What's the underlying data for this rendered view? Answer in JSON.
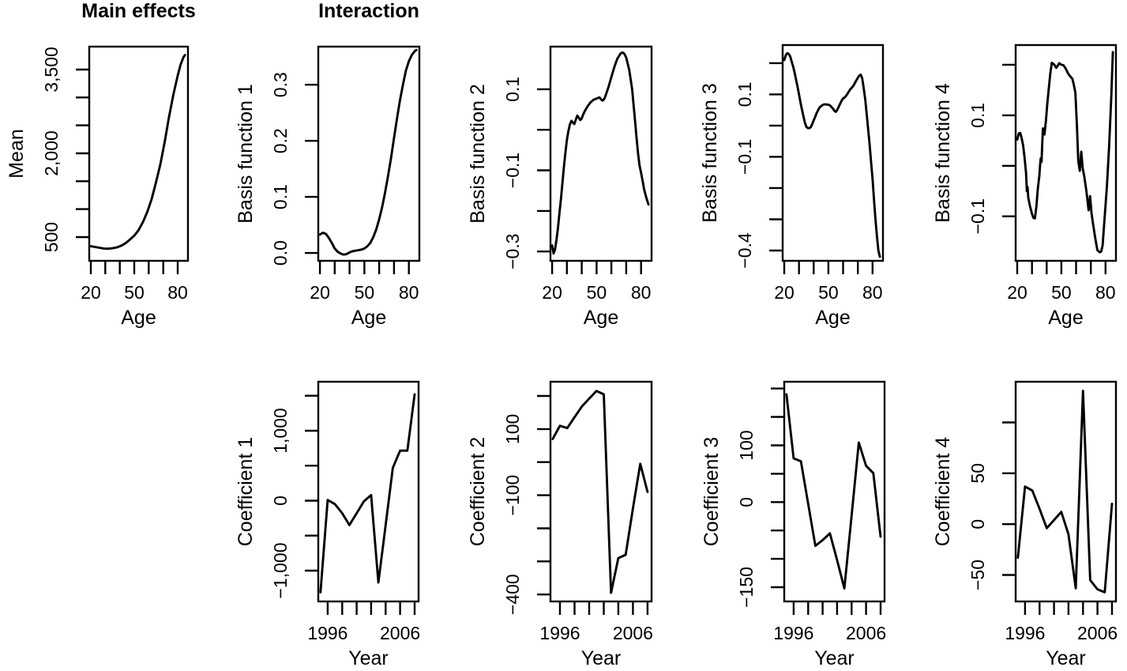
{
  "figure": {
    "background": "#ffffff",
    "line_color": "#000000",
    "header_main": "Main effects",
    "header_interaction": "Interaction"
  },
  "chart_data": [
    {
      "name": "mean",
      "type": "line",
      "title": "Main effects",
      "xlabel": "Age",
      "ylabel": "Mean",
      "xlim": [
        18.9,
        87.1
      ],
      "ylim": [
        75,
        3910
      ],
      "xticks": [
        20,
        30,
        40,
        50,
        60,
        70,
        80
      ],
      "xtick_labels": [
        "20",
        "",
        "",
        "50",
        "",
        "",
        "80"
      ],
      "yticks": [
        500,
        1000,
        1500,
        2000,
        2500,
        3000,
        3500
      ],
      "ytick_labels": [
        "500",
        "",
        "",
        "2,000",
        "",
        "",
        "3,500"
      ],
      "x": [
        20,
        23,
        26,
        29,
        32,
        35,
        38,
        41,
        44,
        47,
        50,
        53,
        56,
        59,
        62,
        65,
        68,
        71,
        74,
        77,
        80,
        82,
        84,
        85
      ],
      "y": [
        335,
        322,
        308,
        296,
        292,
        300,
        316,
        345,
        390,
        455,
        525,
        625,
        770,
        950,
        1180,
        1480,
        1800,
        2200,
        2650,
        3050,
        3390,
        3590,
        3720,
        3760
      ]
    },
    {
      "name": "basis-function-1",
      "type": "line",
      "title": "Interaction",
      "xlabel": "Age",
      "ylabel": "Basis function 1",
      "xlim": [
        18.9,
        87.1
      ],
      "ylim": [
        -0.014,
        0.368
      ],
      "xticks": [
        20,
        30,
        40,
        50,
        60,
        70,
        80
      ],
      "xtick_labels": [
        "20",
        "",
        "",
        "50",
        "",
        "",
        "80"
      ],
      "yticks": [
        0,
        0.1,
        0.2,
        0.3
      ],
      "ytick_labels": [
        "0.0",
        "0.1",
        "0.2",
        "0.3"
      ],
      "x": [
        20,
        22,
        24,
        26,
        28,
        30,
        32,
        34,
        36,
        38,
        40,
        42,
        44,
        46,
        48,
        50,
        52,
        54,
        56,
        58,
        60,
        62,
        64,
        66,
        68,
        70,
        72,
        74,
        76,
        78,
        80,
        82,
        84,
        85
      ],
      "y": [
        0.033,
        0.036,
        0.034,
        0.027,
        0.018,
        0.008,
        0.002,
        -0.001,
        -0.003,
        -0.002,
        0.001,
        0.003,
        0.004,
        0.005,
        0.006,
        0.008,
        0.012,
        0.018,
        0.028,
        0.042,
        0.06,
        0.082,
        0.108,
        0.138,
        0.17,
        0.205,
        0.24,
        0.272,
        0.3,
        0.325,
        0.342,
        0.353,
        0.36,
        0.362
      ]
    },
    {
      "name": "basis-function-2",
      "type": "line",
      "xlabel": "Age",
      "ylabel": "Basis function 2",
      "xlim": [
        18.9,
        87.1
      ],
      "ylim": [
        -0.323,
        0.205
      ],
      "xticks": [
        20,
        30,
        40,
        50,
        60,
        70,
        80
      ],
      "xtick_labels": [
        "20",
        "",
        "",
        "50",
        "",
        "",
        "80"
      ],
      "yticks": [
        -0.3,
        -0.2,
        -0.1,
        0,
        0.1
      ],
      "ytick_labels": [
        "−0.3",
        "",
        "−0.1",
        "",
        "0.1"
      ],
      "x": [
        20,
        21,
        22,
        23,
        24,
        25,
        26,
        27,
        28,
        29,
        30,
        31,
        32,
        33,
        34,
        35,
        36,
        37,
        38,
        39,
        40,
        41,
        42,
        44,
        46,
        48,
        50,
        52,
        53,
        54,
        55,
        56,
        58,
        60,
        62,
        64,
        66,
        67,
        68,
        69,
        70,
        71,
        72,
        73,
        74,
        75,
        76,
        77,
        78,
        79,
        80,
        81,
        82,
        83,
        84,
        85
      ],
      "y": [
        -0.285,
        -0.305,
        -0.295,
        -0.27,
        -0.24,
        -0.205,
        -0.17,
        -0.13,
        -0.09,
        -0.055,
        -0.025,
        -0.003,
        0.013,
        0.022,
        0.018,
        0.014,
        0.025,
        0.035,
        0.03,
        0.024,
        0.028,
        0.038,
        0.046,
        0.058,
        0.068,
        0.074,
        0.077,
        0.08,
        0.075,
        0.072,
        0.075,
        0.083,
        0.105,
        0.13,
        0.155,
        0.175,
        0.187,
        0.19,
        0.19,
        0.186,
        0.178,
        0.163,
        0.148,
        0.125,
        0.1,
        0.06,
        0.02,
        -0.02,
        -0.058,
        -0.088,
        -0.106,
        -0.125,
        -0.145,
        -0.16,
        -0.173,
        -0.184
      ]
    },
    {
      "name": "basis-function-3",
      "type": "line",
      "xlabel": "Age",
      "ylabel": "Basis function 3",
      "xlim": [
        18.9,
        87.1
      ],
      "ylim": [
        -0.433,
        0.258
      ],
      "xticks": [
        20,
        30,
        40,
        50,
        60,
        70,
        80
      ],
      "xtick_labels": [
        "20",
        "",
        "",
        "50",
        "",
        "",
        "80"
      ],
      "yticks": [
        -0.4,
        -0.3,
        -0.2,
        -0.1,
        0,
        0.1,
        0.2
      ],
      "ytick_labels": [
        "−0.4",
        "",
        "",
        "−0.1",
        "",
        "0.1",
        ""
      ],
      "x": [
        20,
        21,
        22,
        23,
        24,
        25,
        26,
        27,
        28,
        29,
        30,
        31,
        32,
        33,
        34,
        35,
        36,
        37,
        38,
        39,
        40,
        41,
        42,
        43,
        44,
        45,
        46,
        47,
        48,
        50,
        51,
        52,
        53,
        54,
        55,
        56,
        57,
        58,
        59,
        60,
        61,
        62,
        63,
        64,
        65,
        66,
        67,
        68,
        69,
        70,
        71,
        72,
        73,
        74,
        75,
        76,
        77,
        78,
        79,
        80,
        81,
        82,
        83,
        84,
        85
      ],
      "y": [
        0.21,
        0.225,
        0.232,
        0.23,
        0.222,
        0.205,
        0.19,
        0.17,
        0.148,
        0.125,
        0.1,
        0.075,
        0.052,
        0.03,
        0.01,
        -0.004,
        -0.008,
        -0.008,
        -0.005,
        0.005,
        0.017,
        0.028,
        0.04,
        0.05,
        0.058,
        0.062,
        0.066,
        0.068,
        0.068,
        0.067,
        0.065,
        0.06,
        0.055,
        0.048,
        0.044,
        0.05,
        0.06,
        0.07,
        0.08,
        0.087,
        0.09,
        0.095,
        0.102,
        0.11,
        0.117,
        0.122,
        0.128,
        0.136,
        0.145,
        0.153,
        0.16,
        0.163,
        0.152,
        0.12,
        0.085,
        0.04,
        -0.01,
        -0.06,
        -0.115,
        -0.17,
        -0.235,
        -0.3,
        -0.355,
        -0.4,
        -0.42
      ]
    },
    {
      "name": "basis-function-4",
      "type": "line",
      "xlabel": "Age",
      "ylabel": "Basis function 4",
      "xlim": [
        18.9,
        87.1
      ],
      "ylim": [
        -0.188,
        0.239
      ],
      "xticks": [
        20,
        30,
        40,
        50,
        60,
        70,
        80
      ],
      "xtick_labels": [
        "20",
        "",
        "",
        "50",
        "",
        "",
        "80"
      ],
      "yticks": [
        -0.1,
        0,
        0.1,
        0.2
      ],
      "ytick_labels": [
        "−0.1",
        "",
        "0.1",
        ""
      ],
      "x": [
        20,
        21,
        22,
        23,
        24,
        25,
        26,
        26.5,
        27,
        27.5,
        28.5,
        30,
        31,
        32,
        33,
        34,
        35,
        35.5,
        36,
        36.5,
        37,
        37.5,
        38,
        38.5,
        39.5,
        40.5,
        41.5,
        42.5,
        43.5,
        44.5,
        45.5,
        46.5,
        47.5,
        48.5,
        50,
        51.5,
        53,
        54.5,
        56,
        57.5,
        58.5,
        59.5,
        60.5,
        61.5,
        62.5,
        63.5,
        64.5,
        65.5,
        67,
        68.5,
        69.5,
        70.5,
        71.5,
        73,
        74.5,
        76,
        77,
        78,
        79.5,
        81,
        82.5,
        84,
        85
      ],
      "y": [
        0.052,
        0.064,
        0.065,
        0.055,
        0.04,
        0.015,
        -0.015,
        -0.05,
        -0.042,
        -0.063,
        -0.078,
        -0.095,
        -0.103,
        -0.104,
        -0.08,
        -0.045,
        -0.02,
        0,
        0.015,
        0.008,
        0.045,
        0.074,
        0.068,
        0.062,
        0.09,
        0.125,
        0.155,
        0.183,
        0.204,
        0.202,
        0.199,
        0.194,
        0.198,
        0.203,
        0.2,
        0.199,
        0.192,
        0.183,
        0.177,
        0.172,
        0.16,
        0.145,
        0.083,
        0.01,
        -0.01,
        0.028,
        -0.005,
        -0.02,
        -0.05,
        -0.088,
        -0.06,
        -0.094,
        -0.115,
        -0.142,
        -0.167,
        -0.171,
        -0.17,
        -0.158,
        -0.1,
        -0.04,
        0.04,
        0.14,
        0.225
      ]
    },
    {
      "name": "coefficient-1",
      "type": "line",
      "xlabel": "Year",
      "ylabel": "Coefficient 1",
      "xlim": [
        1994.7,
        2008.55
      ],
      "ylim": [
        -1441,
        1700
      ],
      "xticks": [
        1996,
        1998,
        2000,
        2002,
        2004,
        2006,
        2008
      ],
      "xtick_labels": [
        "1996",
        "",
        "",
        "",
        "",
        "2006",
        ""
      ],
      "yticks": [
        -1000,
        -500,
        0,
        500,
        1000,
        1500
      ],
      "ytick_labels": [
        "−1,000",
        "",
        "0",
        "",
        "1,000",
        ""
      ],
      "x": [
        1995,
        1996,
        1997,
        1998,
        1999,
        2000,
        2001,
        2002,
        2003,
        2004,
        2005,
        2006,
        2007,
        2008
      ],
      "y": [
        -1310,
        10,
        -50,
        -180,
        -350,
        -180,
        -10,
        80,
        -1170,
        -350,
        470,
        715,
        715,
        1520
      ]
    },
    {
      "name": "coefficient-2",
      "type": "line",
      "xlabel": "Year",
      "ylabel": "Coefficient 2",
      "xlim": [
        1994.7,
        2008.55
      ],
      "ylim": [
        -421,
        243
      ],
      "xticks": [
        1996,
        1998,
        2000,
        2002,
        2004,
        2006,
        2008
      ],
      "xtick_labels": [
        "1996",
        "",
        "",
        "",
        "",
        "2006",
        ""
      ],
      "yticks": [
        -400,
        -300,
        -200,
        -100,
        0,
        100,
        200
      ],
      "ytick_labels": [
        "−400",
        "",
        "",
        "−100",
        "",
        "100",
        ""
      ],
      "x": [
        1995,
        1996,
        1997,
        1998,
        1999,
        2000,
        2001,
        2002,
        2003,
        2004,
        2005,
        2006,
        2007,
        2008
      ],
      "y": [
        70,
        110,
        103,
        136,
        168,
        192,
        215,
        205,
        -395,
        -290,
        -280,
        -140,
        -5,
        -90
      ]
    },
    {
      "name": "coefficient-3",
      "type": "line",
      "xlabel": "Year",
      "ylabel": "Coefficient 3",
      "xlim": [
        1994.7,
        2008.55
      ],
      "ylim": [
        -175,
        212
      ],
      "xticks": [
        1996,
        1998,
        2000,
        2002,
        2004,
        2006,
        2008
      ],
      "xtick_labels": [
        "1996",
        "",
        "",
        "",
        "",
        "2006",
        ""
      ],
      "yticks": [
        -150,
        -100,
        -50,
        0,
        50,
        100,
        150,
        200
      ],
      "ytick_labels": [
        "−150",
        "",
        "",
        "0",
        "",
        "100",
        "",
        ""
      ],
      "x": [
        1995,
        1996,
        1997,
        1998,
        1999,
        2000,
        2001,
        2002,
        2003,
        2004,
        2005,
        2006,
        2007,
        2008
      ],
      "y": [
        190,
        77,
        72,
        -3,
        -77,
        -67,
        -55,
        -102,
        -152,
        -24,
        105,
        64,
        51,
        -61
      ]
    },
    {
      "name": "coefficient-4",
      "type": "line",
      "xlabel": "Year",
      "ylabel": "Coefficient 4",
      "xlim": [
        1994.7,
        2008.55
      ],
      "ylim": [
        -76,
        140
      ],
      "xticks": [
        1996,
        1998,
        2000,
        2002,
        2004,
        2006,
        2008
      ],
      "xtick_labels": [
        "1996",
        "",
        "",
        "",
        "",
        "2006",
        ""
      ],
      "yticks": [
        -50,
        0,
        50,
        100
      ],
      "ytick_labels": [
        "−50",
        "0",
        "50",
        ""
      ],
      "x": [
        1995,
        1996,
        1997,
        1998,
        1999,
        2000,
        2001,
        2002,
        2003,
        2004,
        2005,
        2006,
        2007,
        2008
      ],
      "y": [
        -33,
        37,
        33,
        15,
        -4,
        4,
        12,
        -10,
        -63,
        131,
        -55,
        -64,
        -67,
        20
      ]
    }
  ]
}
